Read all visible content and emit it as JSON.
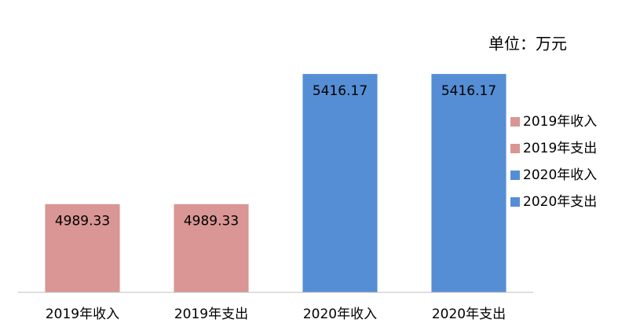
{
  "chart_data": {
    "type": "bar",
    "annotation": "单位：万元",
    "categories": [
      "2019年收入",
      "2019年支出",
      "2020年收入",
      "2020年支出"
    ],
    "values": [
      4989.33,
      4989.33,
      5416.17,
      5416.17
    ],
    "colors": [
      "#d99694",
      "#d99694",
      "#558ed5",
      "#558ed5"
    ],
    "ylim": [
      4700,
      5450
    ],
    "legend": "right"
  }
}
